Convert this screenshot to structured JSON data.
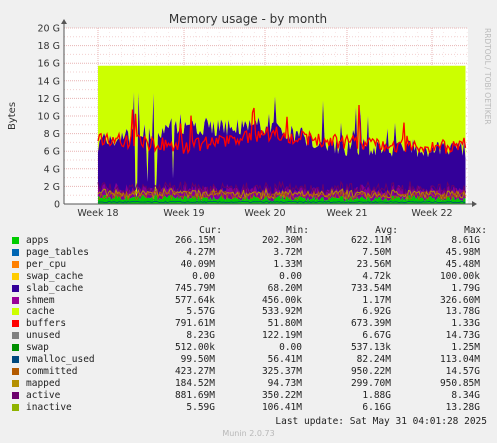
{
  "chart_data": {
    "type": "area",
    "title": "Memory usage - by month",
    "ylabel": "Bytes",
    "y_ticks": [
      "0",
      "2 G",
      "4 G",
      "6 G",
      "8 G",
      "10 G",
      "12 G",
      "14 G",
      "16 G",
      "18 G",
      "20 G"
    ],
    "ylim": [
      0,
      20
    ],
    "x_ticks": [
      "Week 18",
      "Week 19",
      "Week 20",
      "Week 21",
      "Week 22"
    ],
    "grid": true,
    "watermark": "RRDTOOL / TOBI OETIKER",
    "approx_profile_gb": {
      "x": [
        "Week 18",
        "Week 19",
        "Week 20",
        "Week 21",
        "Week 22"
      ],
      "total": [
        15.7,
        15.7,
        15.7,
        15.7,
        15.7
      ],
      "cache_top": [
        7.0,
        8.8,
        8.8,
        6.5,
        6.3
      ],
      "inactive_band": [
        7.5,
        6.5,
        8.0,
        7.0,
        6.5
      ],
      "apps": [
        0.4,
        0.3,
        0.3,
        0.3,
        0.3
      ]
    },
    "columns": [
      "Cur:",
      "Min:",
      "Avg:",
      "Max:"
    ],
    "series": [
      {
        "name": "apps",
        "color": "#00cc00",
        "cur": "266.15M",
        "min": "202.30M",
        "avg": "622.11M",
        "max": "8.61G"
      },
      {
        "name": "page_tables",
        "color": "#0066b3",
        "cur": "4.27M",
        "min": "3.72M",
        "avg": "7.50M",
        "max": "45.98M"
      },
      {
        "name": "per_cpu",
        "color": "#ff8000",
        "cur": "40.09M",
        "min": "1.33M",
        "avg": "23.56M",
        "max": "45.48M"
      },
      {
        "name": "swap_cache",
        "color": "#ffcc00",
        "cur": "0.00",
        "min": "0.00",
        "avg": "4.72k",
        "max": "100.00k"
      },
      {
        "name": "slab_cache",
        "color": "#330099",
        "cur": "745.79M",
        "min": "68.20M",
        "avg": "733.54M",
        "max": "1.79G"
      },
      {
        "name": "shmem",
        "color": "#990099",
        "cur": "577.64k",
        "min": "456.00k",
        "avg": "1.17M",
        "max": "326.60M"
      },
      {
        "name": "cache",
        "color": "#ccff00",
        "cur": "5.57G",
        "min": "533.92M",
        "avg": "6.92G",
        "max": "13.78G"
      },
      {
        "name": "buffers",
        "color": "#ff0000",
        "cur": "791.61M",
        "min": "51.80M",
        "avg": "673.39M",
        "max": "1.33G"
      },
      {
        "name": "unused",
        "color": "#808080",
        "cur": "8.23G",
        "min": "122.19M",
        "avg": "6.67G",
        "max": "14.73G"
      },
      {
        "name": "swap",
        "color": "#008f00",
        "cur": "512.00k",
        "min": "0.00",
        "avg": "537.13k",
        "max": "1.25M"
      },
      {
        "name": "vmalloc_used",
        "color": "#00487d",
        "cur": "99.50M",
        "min": "56.41M",
        "avg": "82.24M",
        "max": "113.04M"
      },
      {
        "name": "committed",
        "color": "#b35a00",
        "cur": "423.27M",
        "min": "325.37M",
        "avg": "950.22M",
        "max": "14.57G"
      },
      {
        "name": "mapped",
        "color": "#b38f00",
        "cur": "184.52M",
        "min": "94.73M",
        "avg": "299.70M",
        "max": "950.85M"
      },
      {
        "name": "active",
        "color": "#6b006b",
        "cur": "881.69M",
        "min": "350.22M",
        "avg": "1.88G",
        "max": "8.34G"
      },
      {
        "name": "inactive",
        "color": "#8fb300",
        "cur": "5.59G",
        "min": "106.41M",
        "avg": "6.16G",
        "max": "13.28G"
      }
    ],
    "last_update": "Last update: Sat May 31 04:01:28 2025",
    "footer": "Munin 2.0.73"
  }
}
